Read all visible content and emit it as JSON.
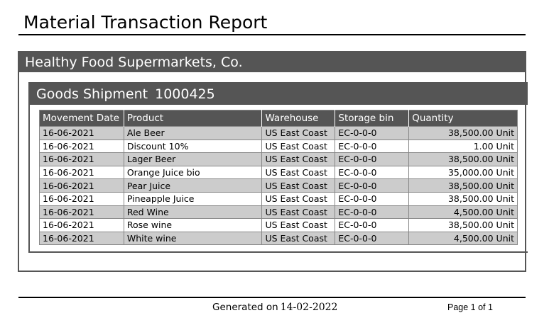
{
  "report": {
    "title": "Material Transaction Report",
    "organization": "Healthy Food Supermarkets, Co.",
    "shipment_label": "Goods Shipment",
    "shipment_number": "1000425"
  },
  "table": {
    "headers": [
      "Movement Date",
      "Product",
      "Warehouse",
      "Storage bin",
      "Quantity"
    ],
    "rows": [
      [
        "16-06-2021",
        "Ale Beer",
        "US East Coast",
        "EC-0-0-0",
        "38,500.00 Unit"
      ],
      [
        "16-06-2021",
        "Discount 10%",
        "US East Coast",
        "EC-0-0-0",
        "1.00 Unit"
      ],
      [
        "16-06-2021",
        "Lager Beer",
        "US East Coast",
        "EC-0-0-0",
        "38,500.00 Unit"
      ],
      [
        "16-06-2021",
        "Orange Juice bio",
        "US East Coast",
        "EC-0-0-0",
        "35,000.00 Unit"
      ],
      [
        "16-06-2021",
        "Pear Juice",
        "US East Coast",
        "EC-0-0-0",
        "38,500.00 Unit"
      ],
      [
        "16-06-2021",
        "Pineapple Juice",
        "US East Coast",
        "EC-0-0-0",
        "38,500.00 Unit"
      ],
      [
        "16-06-2021",
        "Red Wine",
        "US East Coast",
        "EC-0-0-0",
        "4,500.00 Unit"
      ],
      [
        "16-06-2021",
        "Rose wine",
        "US East Coast",
        "EC-0-0-0",
        "38,500.00 Unit"
      ],
      [
        "16-06-2021",
        "White wine",
        "US East Coast",
        "EC-0-0-0",
        "4,500.00 Unit"
      ]
    ]
  },
  "footer": {
    "generated_label": "Generated on",
    "generated_date": "14-02-2022",
    "page_text": "Page 1 of 1"
  }
}
